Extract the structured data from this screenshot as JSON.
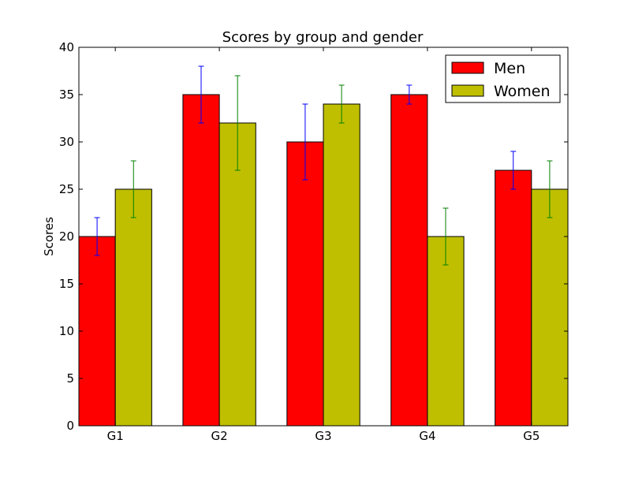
{
  "chart_data": {
    "type": "bar",
    "title": "Scores by group and gender",
    "xlabel": "",
    "ylabel": "Scores",
    "categories": [
      "G1",
      "G2",
      "G3",
      "G4",
      "G5"
    ],
    "ylim": [
      0,
      40
    ],
    "yticks": [
      0,
      5,
      10,
      15,
      20,
      25,
      30,
      35,
      40
    ],
    "grid": false,
    "legend_position": "top-right",
    "series": [
      {
        "name": "Men",
        "values": [
          20,
          35,
          30,
          35,
          27
        ],
        "errors": [
          2,
          3,
          4,
          1,
          2
        ],
        "color": "#ff0000",
        "error_color": "#0000ff"
      },
      {
        "name": "Women",
        "values": [
          25,
          32,
          34,
          20,
          25
        ],
        "errors": [
          3,
          5,
          2,
          3,
          3
        ],
        "color": "#bfbf00",
        "error_color": "#008000"
      }
    ]
  }
}
